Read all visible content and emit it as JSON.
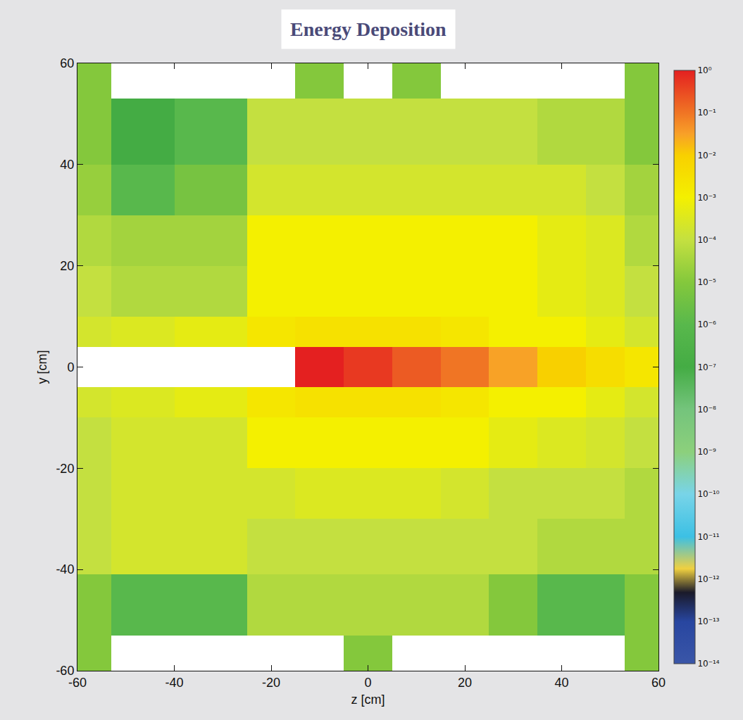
{
  "chart_data": {
    "type": "heatmap",
    "title": "Energy Deposition",
    "x_label": "z [cm]",
    "y_label": "y [cm]",
    "x": [
      -60,
      -53,
      -40,
      -25,
      -15,
      -5,
      5,
      15,
      25,
      35,
      45,
      53,
      60
    ],
    "y": [
      -60,
      -53,
      -41,
      -30,
      -20,
      -10,
      -4,
      4,
      10,
      20,
      30,
      40,
      53,
      60
    ],
    "cells": [
      [
        1e-05,
        null,
        null,
        null,
        null,
        1e-05,
        null,
        null,
        null,
        null,
        null,
        1e-05
      ],
      [
        1e-05,
        1e-06,
        1e-06,
        5e-05,
        5e-05,
        5e-05,
        5e-05,
        5e-05,
        1e-05,
        1e-06,
        1e-06,
        1e-05
      ],
      [
        0.0001,
        0.0002,
        0.0002,
        0.0001,
        0.0001,
        0.0001,
        0.0001,
        0.0001,
        0.0001,
        5e-05,
        5e-05,
        5e-05
      ],
      [
        0.0001,
        0.0002,
        0.0002,
        0.0002,
        0.0003,
        0.0003,
        0.0003,
        0.0002,
        0.0001,
        0.0001,
        0.0001,
        5e-05
      ],
      [
        0.0001,
        0.0002,
        0.0002,
        0.001,
        0.001,
        0.001,
        0.001,
        0.001,
        0.0005,
        0.0003,
        0.0002,
        0.0001
      ],
      [
        0.0002,
        0.0003,
        0.0005,
        0.002,
        0.003,
        0.003,
        0.003,
        0.002,
        0.001,
        0.001,
        0.0005,
        0.0002
      ],
      [
        null,
        null,
        null,
        null,
        1,
        0.5,
        0.2,
        0.1,
        0.03,
        0.01,
        0.004,
        0.002
      ],
      [
        0.0002,
        0.0003,
        0.0005,
        0.002,
        0.003,
        0.003,
        0.003,
        0.002,
        0.001,
        0.001,
        0.0005,
        0.0002
      ],
      [
        0.0001,
        5e-05,
        5e-05,
        0.001,
        0.001,
        0.001,
        0.001,
        0.001,
        0.001,
        0.0005,
        0.0003,
        0.0001
      ],
      [
        5e-05,
        3e-05,
        3e-05,
        0.001,
        0.001,
        0.001,
        0.001,
        0.001,
        0.001,
        0.0005,
        0.0003,
        5e-05
      ],
      [
        2e-05,
        1e-06,
        5e-06,
        0.0002,
        0.0002,
        0.0002,
        0.0002,
        0.0002,
        0.0002,
        0.0002,
        0.0001,
        3e-05
      ],
      [
        1e-05,
        1e-07,
        1e-06,
        0.0001,
        0.0001,
        0.0001,
        0.0001,
        0.0001,
        0.0001,
        5e-05,
        5e-05,
        1e-05
      ],
      [
        1e-05,
        null,
        null,
        null,
        1e-05,
        null,
        1e-05,
        null,
        null,
        null,
        null,
        1e-05
      ]
    ],
    "xlim": [
      -60,
      60
    ],
    "ylim": [
      -60,
      60
    ],
    "xticks": [
      -60,
      -40,
      -20,
      0,
      20,
      40,
      60
    ],
    "yticks": [
      -60,
      -40,
      -20,
      0,
      20,
      40,
      60
    ],
    "colorbar": {
      "log": true,
      "range": [
        1e-14,
        1
      ],
      "ticks": [
        {
          "value": 1,
          "label": "10⁰"
        },
        {
          "value": 0.1,
          "label": "10⁻¹"
        },
        {
          "value": 0.01,
          "label": "10⁻²"
        },
        {
          "value": 0.001,
          "label": "10⁻³"
        },
        {
          "value": 0.0001,
          "label": "10⁻⁴"
        },
        {
          "value": 1e-05,
          "label": "10⁻⁵"
        },
        {
          "value": 1e-06,
          "label": "10⁻⁶"
        },
        {
          "value": 1e-07,
          "label": "10⁻⁷"
        },
        {
          "value": 1e-08,
          "label": "10⁻⁸"
        },
        {
          "value": 1e-09,
          "label": "10⁻⁹"
        },
        {
          "value": 1e-10,
          "label": "10⁻¹⁰"
        },
        {
          "value": 1e-11,
          "label": "10⁻¹¹"
        },
        {
          "value": 1e-12,
          "label": "10⁻¹²"
        },
        {
          "value": 1e-13,
          "label": "10⁻¹³"
        },
        {
          "value": 1e-14,
          "label": "10⁻¹⁴"
        }
      ]
    }
  }
}
